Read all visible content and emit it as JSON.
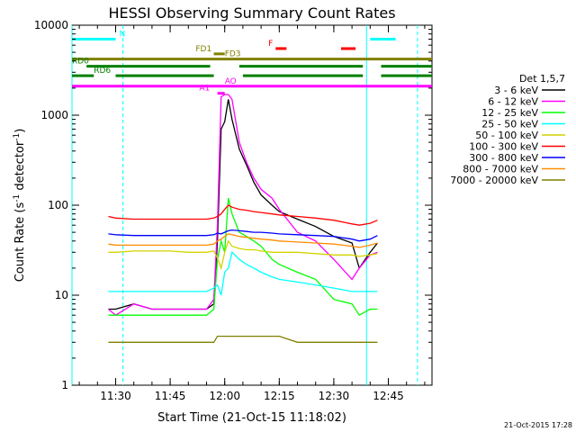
{
  "chart_data": {
    "type": "line",
    "title": "HESSI Observing Summary Count Rates",
    "xlabel": "Start Time (21-Oct-15 11:18:02)",
    "ylabel": "Count Rate (s⁻¹ detector⁻¹)",
    "ylabel_main": "Count Rate (s",
    "ylabel_sup1": "-1",
    "ylabel_mid": " detector",
    "ylabel_sup2": "-1",
    "ylabel_end": ")",
    "xlim": [
      "11:18",
      "12:57"
    ],
    "ylim": [
      1,
      10000
    ],
    "y_scale": "log",
    "x_ticks": [
      "11:30",
      "11:45",
      "12:00",
      "12:15",
      "12:30",
      "12:45"
    ],
    "y_ticks": [
      "1",
      "10",
      "100",
      "1000",
      "10000"
    ],
    "footer_date": "21-Oct-2015 17:28",
    "legend": {
      "placement": "right",
      "title": "Det 1,5,7",
      "entries": [
        {
          "label": "3 - 6 keV",
          "color": "#000000"
        },
        {
          "label": "6 - 12 keV",
          "color": "#ff00ff"
        },
        {
          "label": "12 - 25 keV",
          "color": "#00ff00"
        },
        {
          "label": "25 - 50 keV",
          "color": "#00ffff"
        },
        {
          "label": "50 - 100 keV",
          "color": "#d4d400"
        },
        {
          "label": "100 - 300 keV",
          "color": "#ff0000"
        },
        {
          "label": "300 - 800 keV",
          "color": "#0000ff"
        },
        {
          "label": "800 - 7000 keV",
          "color": "#ff8c00"
        },
        {
          "label": "7000 - 20000 keV",
          "color": "#808000"
        }
      ]
    },
    "x_sample": [
      "11:28",
      "11:30",
      "11:35",
      "11:40",
      "11:45",
      "11:50",
      "11:55",
      "11:57",
      "11:58",
      "11:59",
      "12:00",
      "12:01",
      "12:02",
      "12:04",
      "12:06",
      "12:08",
      "12:10",
      "12:13",
      "12:15",
      "12:20",
      "12:25",
      "12:30",
      "12:35",
      "12:37",
      "12:40",
      "12:42"
    ],
    "series": [
      {
        "name": "3 - 6 keV",
        "color": "#000000",
        "values": [
          7,
          7,
          8,
          7,
          7,
          7,
          7,
          8,
          40,
          700,
          850,
          1500,
          900,
          420,
          280,
          180,
          130,
          100,
          85,
          70,
          58,
          45,
          38,
          20,
          30,
          38
        ]
      },
      {
        "name": "6 - 12 keV",
        "color": "#ff00ff",
        "values": [
          7,
          6,
          8,
          7,
          7,
          7,
          7,
          9,
          60,
          1600,
          1700,
          1700,
          1500,
          500,
          300,
          200,
          150,
          120,
          90,
          50,
          40,
          25,
          15,
          20,
          28,
          30
        ]
      },
      {
        "name": "12 - 25 keV",
        "color": "#00ff00",
        "values": [
          6,
          6,
          6,
          6,
          6,
          6,
          6,
          7,
          25,
          40,
          30,
          120,
          80,
          50,
          45,
          40,
          35,
          25,
          22,
          18,
          15,
          9,
          8,
          6,
          7,
          7
        ]
      },
      {
        "name": "25 - 50 keV",
        "color": "#00ffff",
        "values": [
          11,
          11,
          11,
          11,
          11,
          11,
          11,
          12,
          13,
          10,
          18,
          20,
          30,
          25,
          22,
          20,
          18,
          16,
          15,
          14,
          13,
          12,
          11,
          11,
          11,
          11
        ]
      },
      {
        "name": "50 - 100 keV",
        "color": "#d4d400",
        "values": [
          30,
          30,
          31,
          31,
          31,
          30,
          30,
          31,
          26,
          20,
          30,
          40,
          35,
          33,
          32,
          32,
          31,
          30,
          30,
          30,
          29,
          28,
          28,
          27,
          28,
          29
        ]
      },
      {
        "name": "100 - 300 keV",
        "color": "#ff0000",
        "values": [
          75,
          72,
          70,
          70,
          70,
          70,
          70,
          72,
          75,
          80,
          90,
          100,
          95,
          90,
          88,
          85,
          83,
          80,
          78,
          75,
          72,
          68,
          62,
          60,
          63,
          68
        ]
      },
      {
        "name": "300 - 800 keV",
        "color": "#0000ff",
        "values": [
          48,
          47,
          46,
          46,
          46,
          46,
          46,
          47,
          49,
          48,
          50,
          52,
          53,
          52,
          51,
          50,
          50,
          49,
          48,
          47,
          46,
          45,
          42,
          40,
          42,
          46
        ]
      },
      {
        "name": "800 - 7000 keV",
        "color": "#ff8c00",
        "values": [
          37,
          36,
          36,
          36,
          36,
          36,
          36,
          37,
          40,
          42,
          45,
          48,
          47,
          45,
          44,
          43,
          42,
          41,
          40,
          39,
          38,
          37,
          35,
          34,
          36,
          38
        ]
      },
      {
        "name": "7000 - 20000 keV",
        "color": "#808000",
        "values": [
          3,
          3,
          3,
          3,
          3,
          3,
          3,
          3,
          3.5,
          3.5,
          3.5,
          3.5,
          3.5,
          3.5,
          3.5,
          3.5,
          3.5,
          3.5,
          3.5,
          3,
          3,
          3,
          3,
          3,
          3,
          3
        ]
      }
    ],
    "flags": [
      {
        "label": "N",
        "color": "#00ffff",
        "level": 7000,
        "segments": [
          [
            "11:18",
            "11:30"
          ],
          [
            "12:40",
            "12:47"
          ]
        ],
        "label_at": "11:31"
      },
      {
        "label": "F",
        "color": "#ff0000",
        "level": 5500,
        "segments": [
          [
            "12:14",
            "12:17"
          ],
          [
            "12:32",
            "12:36"
          ]
        ],
        "label_at": "12:12"
      },
      {
        "label": "FD1",
        "color": "#808000",
        "level": 4800,
        "segments": [
          [
            "11:57",
            "12:00"
          ]
        ],
        "label_at": "11:52"
      },
      {
        "label": "FD3",
        "color": "#808000",
        "level": 4200,
        "segments": [
          [
            "11:18",
            "12:57"
          ]
        ],
        "label_at": "12:00"
      },
      {
        "label": "RD0",
        "color": "#008000",
        "level": 3500,
        "segments": [
          [
            "11:22",
            "11:56"
          ],
          [
            "12:04",
            "12:38"
          ],
          [
            "12:43",
            "12:57"
          ]
        ],
        "label_at": "11:18"
      },
      {
        "label": "RD6",
        "color": "#008000",
        "level": 2750,
        "segments": [
          [
            "11:18",
            "11:24"
          ],
          [
            "11:30",
            "11:57"
          ],
          [
            "12:05",
            "12:38"
          ],
          [
            "12:43",
            "12:57"
          ]
        ],
        "label_at": "11:24"
      },
      {
        "label": "AO",
        "color": "#ff00ff",
        "level": 2100,
        "segments": [
          [
            "11:18",
            "12:57"
          ]
        ],
        "label_at": "12:00"
      },
      {
        "label": "A1",
        "color": "#ff00ff",
        "level": 1750,
        "segments": [
          [
            "11:58",
            "12:00"
          ]
        ],
        "label_at": "11:53"
      }
    ],
    "saa_lines": [
      "11:18",
      "12:39"
    ],
    "night_lines": [
      "11:32",
      "12:53"
    ]
  }
}
